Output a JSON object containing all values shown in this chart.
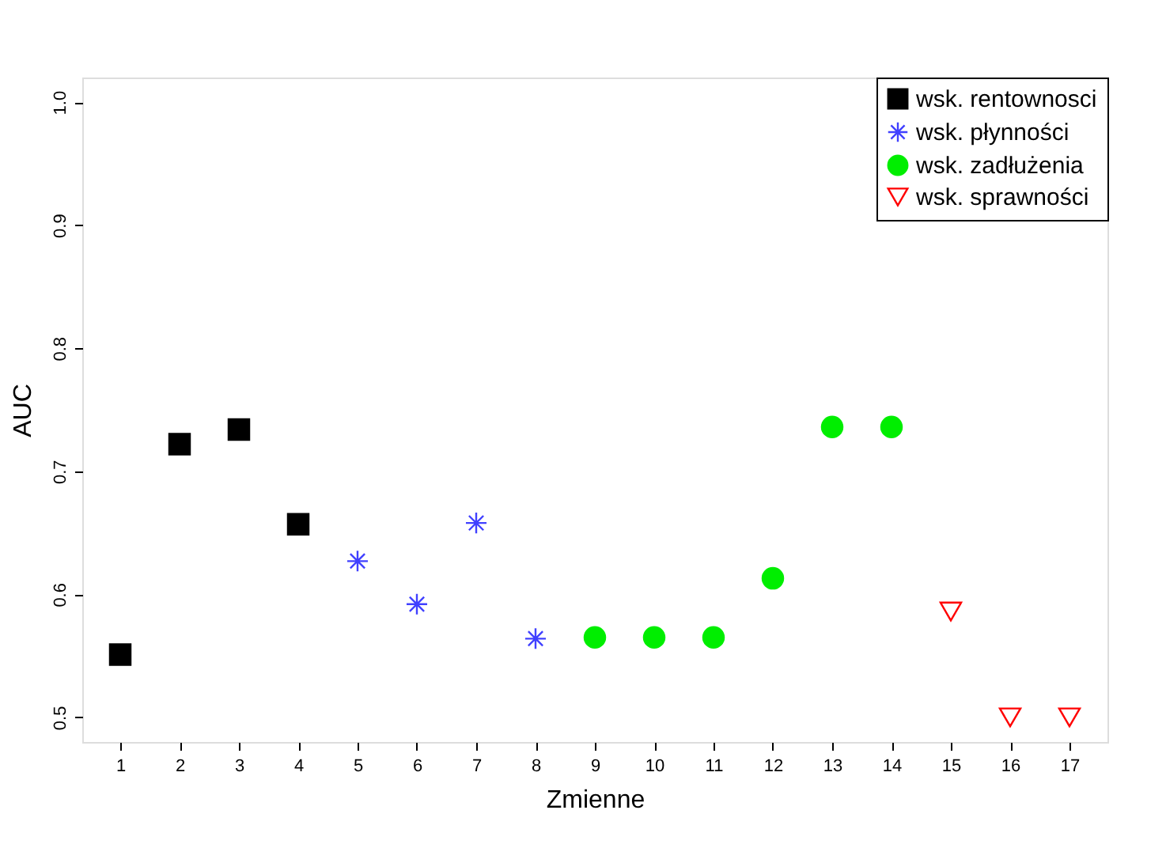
{
  "chart_data": {
    "type": "scatter",
    "xlabel": "Zmienne",
    "ylabel": "AUC",
    "xlim": [
      0.36,
      17.64
    ],
    "xticks": [
      1,
      2,
      3,
      4,
      5,
      6,
      7,
      8,
      9,
      10,
      11,
      12,
      13,
      14,
      15,
      16,
      17
    ],
    "ylim": [
      0.48,
      1.02
    ],
    "yticks": [
      0.5,
      0.6,
      0.7,
      0.8,
      0.9,
      {
        "value": 1,
        "label": "1.0"
      }
    ],
    "grid": false,
    "legend": "top right",
    "series": [
      {
        "name": "wsk. rentownosci",
        "color": "#000000",
        "marker": "square",
        "x": [
          1,
          2,
          3,
          4
        ],
        "values": [
          0.551,
          0.722,
          0.734,
          0.657
        ]
      },
      {
        "name": "wsk. płynności",
        "color": "#4040ff",
        "marker": "cross",
        "x": [
          5,
          6,
          7,
          8
        ],
        "values": [
          0.627,
          0.592,
          0.658,
          0.564
        ]
      },
      {
        "name": "wsk. zadłużenia",
        "color": "#00ee00",
        "marker": "circle",
        "x": [
          9,
          10,
          11,
          12,
          13,
          14
        ],
        "values": [
          0.565,
          0.565,
          0.565,
          0.613,
          0.736,
          0.736
        ]
      },
      {
        "name": "wsk. sprawności",
        "color": "#ff0000",
        "marker": "triangle",
        "x": [
          15,
          16,
          17
        ],
        "values": [
          0.586,
          0.5,
          0.5
        ]
      }
    ]
  }
}
